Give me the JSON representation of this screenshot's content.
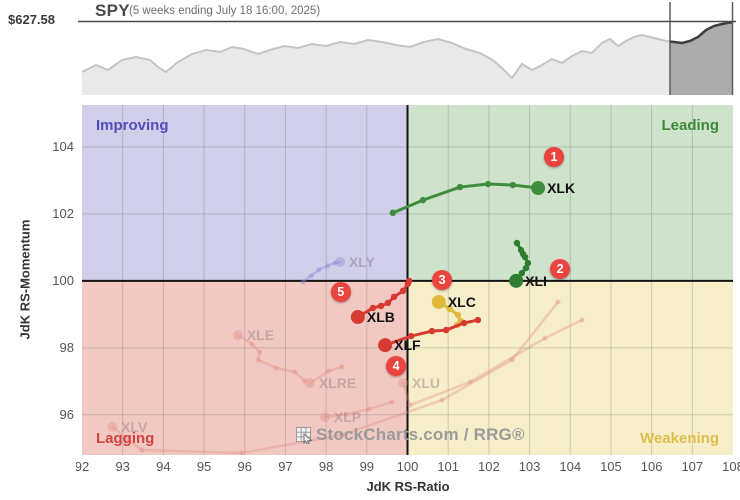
{
  "header": {
    "price_label": "$627.58",
    "symbol": "SPY",
    "subtitle": "(5 weeks ending July 18 16:00, 2025)"
  },
  "chart_data": {
    "type": "scatter",
    "title": "SPY",
    "subtitle": "(5 weeks ending July 18 16:00, 2025)",
    "xlabel": "JdK RS-Ratio",
    "ylabel": "JdK RS-Momentum",
    "xlim": [
      92,
      108
    ],
    "ylim": [
      94.8,
      105.25
    ],
    "x_ticks": [
      92,
      93,
      94,
      95,
      96,
      97,
      98,
      99,
      100,
      101,
      102,
      103,
      104,
      105,
      106,
      107,
      108
    ],
    "y_ticks": [
      96,
      98,
      100,
      102,
      104
    ],
    "grid": true,
    "quadrants": [
      {
        "key": "improving",
        "label": "Improving",
        "bg": "#d0cee9",
        "text": "#524cba"
      },
      {
        "key": "leading",
        "label": "Leading",
        "bg": "#cfe2cb",
        "text": "#3a8a3a"
      },
      {
        "key": "lagging",
        "label": "Lagging",
        "bg": "#f2c8c3",
        "text": "#d5433d"
      },
      {
        "key": "weakening",
        "label": "Weakening",
        "bg": "#f6edc9",
        "text": "#dcc04a"
      }
    ],
    "series": [
      {
        "name": "XLV",
        "color": "#e08a82",
        "label_color": "rgba(150,120,125,0.45)",
        "faded": true,
        "points": [
          [
            103.7,
            99.37
          ],
          [
            102.57,
            97.64
          ],
          [
            100.85,
            96.44
          ],
          [
            98.39,
            95.4
          ],
          [
            95.93,
            94.86
          ],
          [
            93.47,
            94.95
          ],
          [
            92.74,
            95.64
          ]
        ]
      },
      {
        "name": "XLU",
        "color": "#e08a82",
        "label_color": "rgba(150,120,125,0.45)",
        "faded": true,
        "points": [
          [
            104.29,
            98.83
          ],
          [
            103.38,
            98.29
          ],
          [
            101.54,
            96.98
          ],
          [
            100.06,
            96.29
          ],
          [
            99.89,
            96.95
          ]
        ]
      },
      {
        "name": "XLP",
        "color": "#e08a82",
        "label_color": "rgba(150,120,125,0.45)",
        "faded": true,
        "points": [
          [
            99.62,
            96.38
          ],
          [
            99.05,
            96.17
          ],
          [
            98.51,
            96.02
          ],
          [
            97.97,
            95.93
          ]
        ]
      },
      {
        "name": "XLRE",
        "color": "#e08a82",
        "label_color": "rgba(150,120,125,0.45)",
        "faded": true,
        "points": [
          [
            98.39,
            97.43
          ],
          [
            98.07,
            97.31
          ],
          [
            97.6,
            96.95
          ]
        ]
      },
      {
        "name": "XLE",
        "color": "#e08a82",
        "label_color": "rgba(150,120,125,0.45)",
        "faded": true,
        "points": [
          [
            97.48,
            97.01
          ],
          [
            97.23,
            97.28
          ],
          [
            96.77,
            97.4
          ],
          [
            96.33,
            97.64
          ],
          [
            96.37,
            97.87
          ],
          [
            96.18,
            98.11
          ],
          [
            95.83,
            98.38
          ]
        ]
      },
      {
        "name": "XLY",
        "color": "#8a7fd0",
        "label_color": "rgba(130,125,160,0.5)",
        "faded": true,
        "points": [
          [
            97.43,
            99.97
          ],
          [
            97.63,
            100.15
          ],
          [
            97.82,
            100.33
          ],
          [
            98.04,
            100.45
          ],
          [
            98.21,
            100.53
          ],
          [
            98.34,
            100.56
          ]
        ]
      },
      {
        "name": "XLK",
        "color": "#3e8e3e",
        "label_color": "#111111",
        "faded": false,
        "points": [
          [
            99.64,
            102.03
          ],
          [
            100.38,
            102.41
          ],
          [
            101.29,
            102.8
          ],
          [
            101.98,
            102.89
          ],
          [
            102.59,
            102.86
          ],
          [
            103.21,
            102.77
          ]
        ]
      },
      {
        "name": "XLI",
        "color": "#2f7d31",
        "label_color": "#111111",
        "faded": false,
        "points": [
          [
            102.69,
            101.13
          ],
          [
            102.79,
            100.92
          ],
          [
            102.84,
            100.8
          ],
          [
            102.89,
            100.71
          ],
          [
            102.96,
            100.53
          ],
          [
            102.91,
            100.38
          ],
          [
            102.81,
            100.23
          ],
          [
            102.67,
            100.0
          ]
        ]
      },
      {
        "name": "XLC",
        "color": "#e0ba3a",
        "label_color": "#111111",
        "faded": false,
        "points": [
          [
            101.22,
            98.68
          ],
          [
            101.31,
            98.8
          ],
          [
            101.24,
            98.98
          ],
          [
            101.04,
            99.16
          ],
          [
            100.77,
            99.37
          ]
        ]
      },
      {
        "name": "XLB",
        "color": "#d73a30",
        "label_color": "#111111",
        "faded": false,
        "points": [
          [
            100.04,
            100.0
          ],
          [
            100.01,
            99.91
          ],
          [
            99.89,
            99.7
          ],
          [
            99.67,
            99.52
          ],
          [
            99.52,
            99.34
          ],
          [
            99.35,
            99.25
          ],
          [
            99.15,
            99.19
          ],
          [
            98.78,
            98.92
          ]
        ]
      },
      {
        "name": "XLF",
        "color": "#d73a30",
        "label_color": "#111111",
        "faded": false,
        "points": [
          [
            101.73,
            98.83
          ],
          [
            101.39,
            98.74
          ],
          [
            100.95,
            98.53
          ],
          [
            100.6,
            98.5
          ],
          [
            100.09,
            98.35
          ],
          [
            99.45,
            98.08
          ]
        ]
      }
    ],
    "badges": [
      {
        "n": "1",
        "x": 103.6,
        "y": 103.7,
        "color": "#e9443d"
      },
      {
        "n": "2",
        "x": 103.75,
        "y": 100.35,
        "color": "#e9443d"
      },
      {
        "n": "3",
        "x": 100.85,
        "y": 100.02,
        "color": "#e9443d"
      },
      {
        "n": "4",
        "x": 99.72,
        "y": 97.46,
        "color": "#e9443d"
      },
      {
        "n": "5",
        "x": 98.36,
        "y": 99.67,
        "color": "#e9443d"
      }
    ],
    "watermark": "StockCharts.com / RRG®",
    "sparkline": {
      "area_color": "#e9e9e9",
      "line_color": "#c4c4c4",
      "highlight_area_color": "#acacac",
      "highlight_line_color": "#3c3c3c",
      "price_line_y": 21.5,
      "baseline_y": 95,
      "highlight_x": [
        670,
        732.5
      ],
      "points": [
        [
          82,
          72
        ],
        [
          96,
          65
        ],
        [
          108,
          70
        ],
        [
          122,
          60
        ],
        [
          136,
          57
        ],
        [
          150,
          60
        ],
        [
          158,
          67
        ],
        [
          166,
          72
        ],
        [
          178,
          62
        ],
        [
          192,
          54
        ],
        [
          206,
          50
        ],
        [
          220,
          52
        ],
        [
          232,
          47
        ],
        [
          244,
          49
        ],
        [
          258,
          54
        ],
        [
          270,
          50
        ],
        [
          284,
          46
        ],
        [
          298,
          48
        ],
        [
          312,
          44
        ],
        [
          326,
          46
        ],
        [
          340,
          42
        ],
        [
          354,
          44
        ],
        [
          368,
          40
        ],
        [
          382,
          42
        ],
        [
          396,
          45
        ],
        [
          410,
          47
        ],
        [
          424,
          42
        ],
        [
          438,
          39
        ],
        [
          452,
          43
        ],
        [
          466,
          49
        ],
        [
          480,
          53
        ],
        [
          494,
          61
        ],
        [
          504,
          70
        ],
        [
          512,
          78
        ],
        [
          522,
          64
        ],
        [
          532,
          70
        ],
        [
          542,
          65
        ],
        [
          552,
          59
        ],
        [
          562,
          63
        ],
        [
          572,
          56
        ],
        [
          582,
          51
        ],
        [
          592,
          53
        ],
        [
          602,
          43
        ],
        [
          610,
          39
        ],
        [
          618,
          46
        ],
        [
          626,
          41
        ],
        [
          634,
          37
        ],
        [
          642,
          35
        ],
        [
          650,
          37
        ],
        [
          658,
          39
        ],
        [
          666,
          41
        ],
        [
          674,
          42
        ],
        [
          682,
          43
        ],
        [
          690,
          41
        ],
        [
          698,
          37
        ],
        [
          706,
          30
        ],
        [
          714,
          26
        ],
        [
          722,
          24
        ],
        [
          733,
          22
        ]
      ]
    }
  }
}
